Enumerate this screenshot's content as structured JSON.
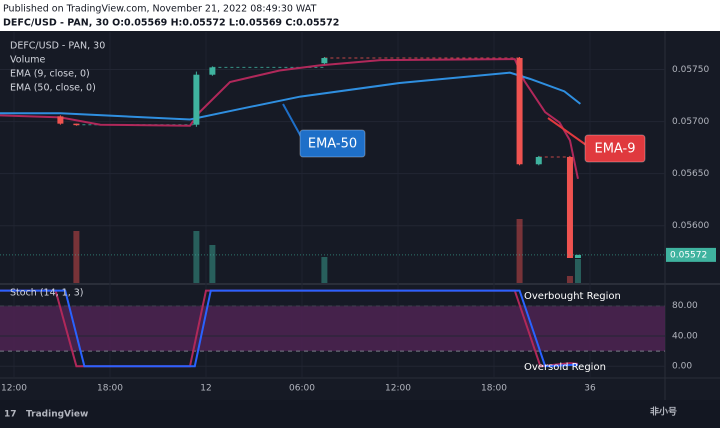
{
  "header": {
    "published": "Published on TradingView.com, November 21, 2022 08:49:30 WAT",
    "symbol": "DEFC/USD - PAN, 30 O:0.05569 H:0.05572 L:0.05569 C:0.05572"
  },
  "chart_data": [
    {
      "type": "candlestick",
      "legend": [
        "DEFC/USD - PAN, 30",
        "Volume",
        "EMA (9, close, 0)",
        "EMA (50, close, 0)"
      ],
      "x": [
        2.9,
        3.9,
        11.4,
        12.4,
        19.4,
        31.6,
        32.8,
        34.75,
        35.25
      ],
      "open": [
        0.05705,
        0.05698,
        0.05697,
        0.05745,
        0.05756,
        0.05761,
        0.05659,
        0.05666,
        0.05569
      ],
      "high": [
        0.05706,
        0.05698,
        0.05748,
        0.05753,
        0.05762,
        0.05762,
        0.05667,
        0.05667,
        0.05572
      ],
      "low": [
        0.05697,
        0.05696,
        0.05695,
        0.05744,
        0.05755,
        0.05658,
        0.05658,
        0.05569,
        0.05569
      ],
      "close": [
        0.05698,
        0.05697,
        0.05745,
        0.05752,
        0.05761,
        0.05659,
        0.05666,
        0.05569,
        0.05572
      ],
      "up_color": "#3fb39f",
      "down_color": "#ef5350",
      "volume": [
        0,
        52,
        52,
        38,
        26,
        64,
        0,
        7,
        24
      ],
      "vlim": [
        0,
        100
      ],
      "series": [
        {
          "name": "EMA-9",
          "color": "#b0285a",
          "label_color": "#e0393e",
          "x": [
            -0.9,
            2.9,
            5.4,
            11.0,
            11.6,
            13.5,
            16.6,
            19.1,
            22.9,
            31.3,
            31.9,
            33.2,
            34.1,
            34.75,
            35.25
          ],
          "values": [
            0.05706,
            0.05704,
            0.05697,
            0.05696,
            0.05709,
            0.05738,
            0.05749,
            0.05754,
            0.05759,
            0.0576,
            0.05739,
            0.05709,
            0.05699,
            0.05682,
            0.05645
          ]
        },
        {
          "name": "EMA-50",
          "color": "#2f8fe0",
          "label_color": "#1e6fc8",
          "x": [
            -0.9,
            2.9,
            11.0,
            14.1,
            17.9,
            24.1,
            31.0,
            32.25,
            34.4,
            35.4
          ],
          "values": [
            0.05708,
            0.05708,
            0.05702,
            0.05712,
            0.05724,
            0.05737,
            0.05747,
            0.05741,
            0.05729,
            0.05717
          ]
        }
      ],
      "ylim": [
        0.05545,
        0.05786
      ],
      "yticks": [
        {
          "value": 0.0575,
          "label": "0.05750"
        },
        {
          "value": 0.057,
          "label": "0.05700"
        },
        {
          "value": 0.0565,
          "label": "0.05650"
        },
        {
          "value": 0.056,
          "label": "0.05600"
        }
      ],
      "last_price": {
        "value": 0.05572,
        "label": "0.05572"
      }
    },
    {
      "type": "line",
      "title": "Stoch (14, 1, 3)",
      "series": [
        {
          "color": "#b0285a",
          "x": [
            -0.9,
            2.6,
            3.9,
            11.0,
            12.0,
            31.3,
            32.9,
            34.75,
            35.25
          ],
          "values": [
            100,
            100,
            0,
            0,
            100,
            100,
            0,
            4,
            3
          ]
        },
        {
          "color": "#2962ff",
          "x": [
            -0.9,
            3.2,
            4.4,
            11.3,
            12.3,
            31.6,
            33.2,
            35.25
          ],
          "values": [
            100,
            100,
            0,
            0,
            100,
            100,
            0,
            2
          ]
        }
      ],
      "band": [
        20,
        80
      ],
      "band_color": "#4a2350",
      "annotations": [
        "Overbought Region",
        "Oversold Region"
      ],
      "ylim": [
        -14.3,
        107.4
      ],
      "yticks": [
        {
          "value": 80,
          "label": "80.00"
        },
        {
          "value": 40,
          "label": "40.00"
        },
        {
          "value": 0,
          "label": "0.00"
        }
      ],
      "xlim": [
        -0.875,
        40.69
      ],
      "xticks": [
        {
          "value": 0,
          "label": "12:00"
        },
        {
          "value": 6,
          "label": "18:00"
        },
        12,
        {
          "value": 18,
          "label": "06:00"
        },
        {
          "value": 24,
          "label": "12:00"
        },
        {
          "value": 30,
          "label": "18:00"
        },
        36
      ]
    }
  ],
  "footer": {
    "brand": "TradingView",
    "watermark": "非小号"
  }
}
